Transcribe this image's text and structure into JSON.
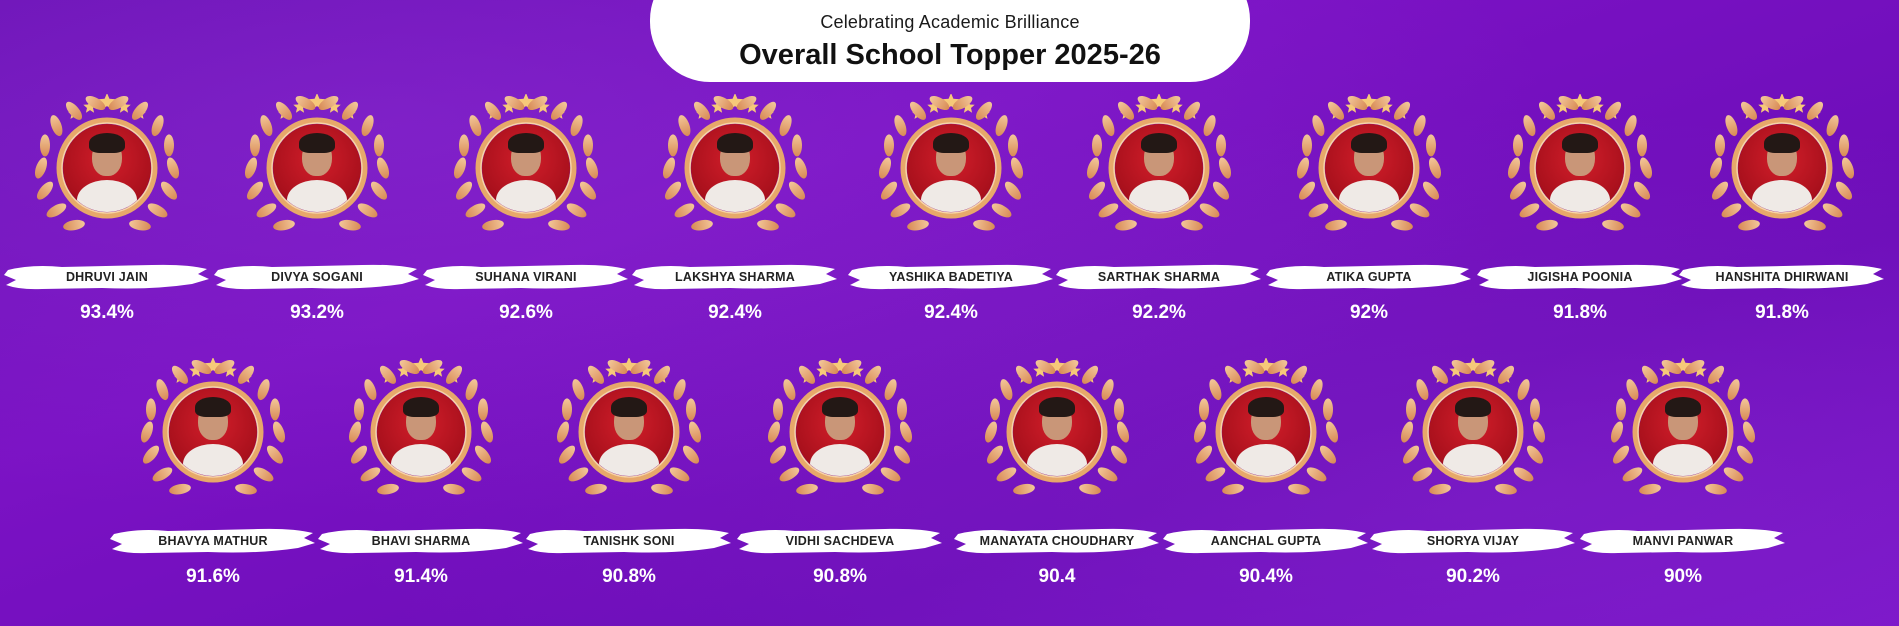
{
  "header": {
    "subtitle": "Celebrating Academic Brilliance",
    "title": "Overall School Topper 2025-26"
  },
  "colors": {
    "background": "#7010bc",
    "wreath": "#e8a56c",
    "photo_bg": "#c0141f",
    "banner": "#ffffff"
  },
  "toppers": [
    {
      "name": "DHRUVI JAIN",
      "score": "93.4%"
    },
    {
      "name": "DIVYA SOGANI",
      "score": "93.2%"
    },
    {
      "name": "SUHANA VIRANI",
      "score": "92.6%"
    },
    {
      "name": "LAKSHYA SHARMA",
      "score": "92.4%"
    },
    {
      "name": "YASHIKA BADETIYA",
      "score": "92.4%"
    },
    {
      "name": "SARTHAK SHARMA",
      "score": "92.2%"
    },
    {
      "name": "ATIKA GUPTA",
      "score": "92%"
    },
    {
      "name": "JIGISHA POONIA",
      "score": "91.8%"
    },
    {
      "name": "HANSHITA DHIRWANI",
      "score": "91.8%"
    },
    {
      "name": "BHAVYA MATHUR",
      "score": "91.6%"
    },
    {
      "name": "BHAVI SHARMA",
      "score": "91.4%"
    },
    {
      "name": "TANISHK SONI",
      "score": "90.8%"
    },
    {
      "name": "VIDHI SACHDEVA",
      "score": "90.8%"
    },
    {
      "name": "MANAYATA CHOUDHARY",
      "score": "90.4"
    },
    {
      "name": "AANCHAL GUPTA",
      "score": "90.4%"
    },
    {
      "name": "SHORYA VIJAY",
      "score": "90.2%"
    },
    {
      "name": "MANVI PANWAR",
      "score": "90%"
    }
  ]
}
